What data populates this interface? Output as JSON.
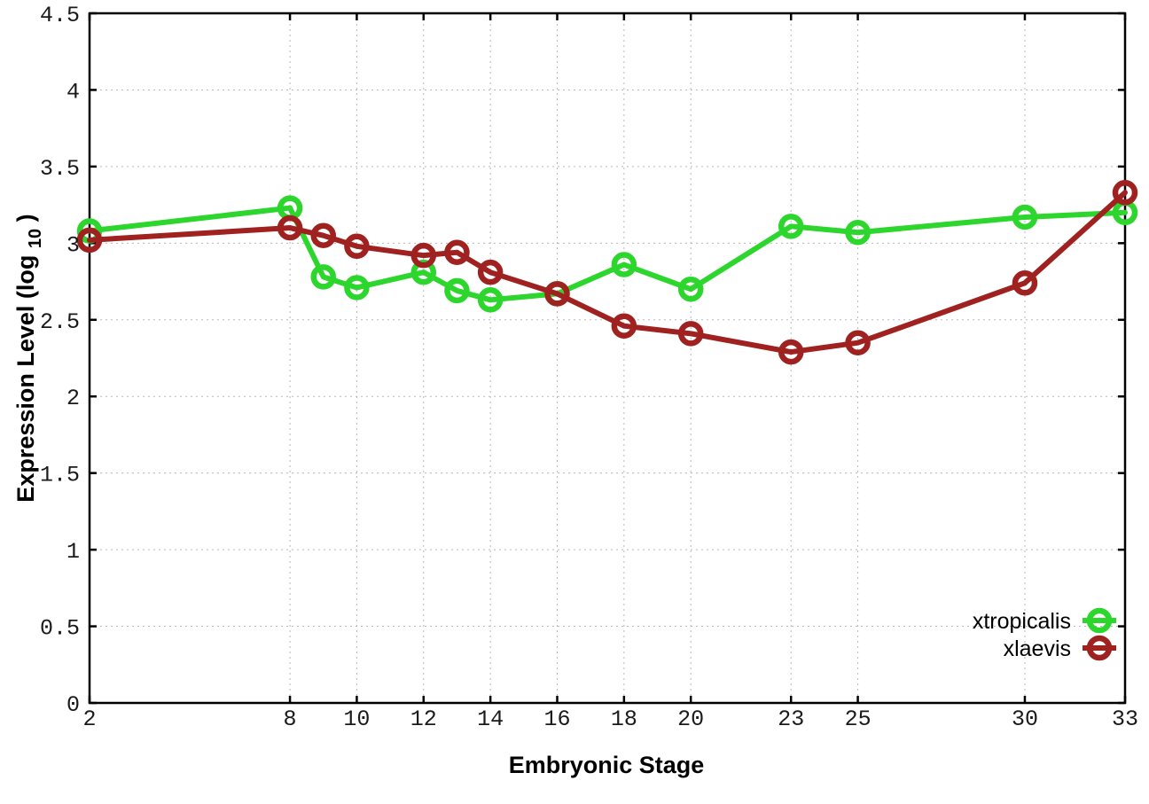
{
  "chart_data": {
    "type": "line",
    "title": "",
    "xlabel": "Embryonic Stage",
    "ylabel": "Expression Level (log10)",
    "ylabel_parts": {
      "pre": "Expression Level (log",
      "sub": "10",
      "post": ")"
    },
    "x": [
      2,
      8,
      9,
      10,
      12,
      13,
      14,
      16,
      18,
      20,
      23,
      25,
      30,
      33
    ],
    "series": [
      {
        "name": "xtropicalis",
        "color": "#2dd62d",
        "values": [
          3.08,
          3.23,
          2.78,
          2.71,
          2.81,
          2.69,
          2.63,
          2.67,
          2.86,
          2.7,
          3.11,
          3.07,
          3.17,
          3.2
        ]
      },
      {
        "name": "xlaevis",
        "color": "#a02220",
        "values": [
          3.02,
          3.1,
          3.05,
          2.98,
          2.92,
          2.94,
          2.81,
          2.67,
          2.46,
          2.41,
          2.29,
          2.35,
          2.74,
          3.33
        ]
      }
    ],
    "xlim": [
      2,
      33
    ],
    "ylim": [
      0,
      4.5
    ],
    "xtick_values": [
      2,
      8,
      10,
      12,
      14,
      16,
      18,
      20,
      23,
      25,
      30,
      33
    ],
    "xtick_labels": [
      "2",
      "8",
      "10",
      "12",
      "14",
      "16",
      "18",
      "20",
      "23",
      "25",
      "30",
      "33"
    ],
    "ytick_values": [
      0,
      0.5,
      1,
      1.5,
      2,
      2.5,
      3,
      3.5,
      4,
      4.5
    ],
    "ytick_labels": [
      "0",
      "0.5",
      "1",
      "1.5",
      "2",
      "2.5",
      "3",
      "3.5",
      "4",
      "4.5"
    ],
    "grid": true,
    "legend_position": "bottom-right",
    "legend": [
      "xtropicalis",
      "xlaevis"
    ],
    "axis_color": "#000000",
    "grid_color": "#b8b8b8",
    "marker": "open-circle"
  }
}
